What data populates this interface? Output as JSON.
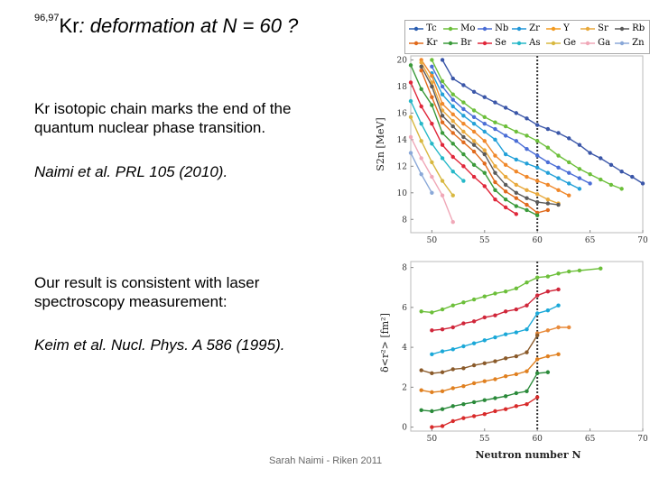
{
  "slide": {
    "title_super": "96,97",
    "title_nucleus": "Kr",
    "title_rest": ":  deformation at N = 60 ?",
    "text1": "Kr isotopic chain marks the end of the quantum nuclear phase transition.",
    "text2": "Naimi et al. PRL 105 (2010).",
    "text3": "Our result is consistent with laser spectroscopy measurement:",
    "text4": "Keim et al. Nucl. Phys. A 586 (1995).",
    "footer": "Sarah Naimi - Riken 2011"
  },
  "chart_data": [
    {
      "type": "line",
      "title": "",
      "xlabel": "",
      "ylabel": "S2n [MeV]",
      "xlim": [
        48,
        70
      ],
      "ylim": [
        7,
        20.3
      ],
      "xticks": [
        50,
        55,
        60,
        65,
        70
      ],
      "yticks": [
        8,
        10,
        12,
        14,
        16,
        18,
        20
      ],
      "vline": 60,
      "legend": [
        {
          "name": "Tc",
          "color": "#2a5db0"
        },
        {
          "name": "Mo",
          "color": "#6cbf3a"
        },
        {
          "name": "Nb",
          "color": "#4a6dd6"
        },
        {
          "name": "Zr",
          "color": "#2196d8"
        },
        {
          "name": "Y",
          "color": "#f39a1f"
        },
        {
          "name": "Sr",
          "color": "#e8a93c"
        },
        {
          "name": "Rb",
          "color": "#5a5a5a"
        },
        {
          "name": "Kr",
          "color": "#e06a1c"
        },
        {
          "name": "Br",
          "color": "#3a9a3a"
        },
        {
          "name": "Se",
          "color": "#e0273a"
        },
        {
          "name": "As",
          "color": "#25b8c8"
        },
        {
          "name": "Ge",
          "color": "#d8b840"
        },
        {
          "name": "Ga",
          "color": "#f0a8b8"
        },
        {
          "name": "Zn",
          "color": "#8aa8d8"
        }
      ],
      "series": [
        {
          "name": "Tc",
          "color": "#3a56a8",
          "x": [
            51,
            52,
            53,
            54,
            55,
            56,
            57,
            58,
            59,
            60,
            61,
            62,
            63,
            64,
            65,
            66,
            67,
            68,
            69,
            70
          ],
          "values": [
            20,
            18.6,
            18.1,
            17.6,
            17.2,
            16.8,
            16.4,
            16.0,
            15.6,
            15.1,
            14.8,
            14.5,
            14.1,
            13.6,
            13.0,
            12.6,
            12.1,
            11.6,
            11.2,
            10.7
          ]
        },
        {
          "name": "Mo",
          "color": "#6cbf3a",
          "x": [
            50,
            51,
            52,
            53,
            54,
            55,
            56,
            57,
            58,
            59,
            60,
            61,
            62,
            63,
            64,
            65,
            66,
            67,
            68
          ],
          "values": [
            20,
            18.4,
            17.4,
            16.8,
            16.2,
            15.7,
            15.3,
            15.0,
            14.6,
            14.3,
            13.9,
            13.4,
            12.8,
            12.3,
            11.8,
            11.4,
            11.0,
            10.6,
            10.3
          ]
        },
        {
          "name": "Nb",
          "color": "#4a6dd6",
          "x": [
            50,
            51,
            52,
            53,
            54,
            55,
            56,
            57,
            58,
            59,
            60,
            61,
            62,
            63,
            64,
            65
          ],
          "values": [
            19.5,
            18.0,
            17.0,
            16.3,
            15.7,
            15.2,
            14.8,
            14.3,
            13.9,
            13.3,
            12.8,
            12.3,
            11.9,
            11.5,
            11.1,
            10.7
          ]
        },
        {
          "name": "Zr",
          "color": "#22a0d8",
          "x": [
            50,
            51,
            52,
            53,
            54,
            55,
            56,
            57,
            58,
            59,
            60,
            61,
            62,
            63,
            64
          ],
          "values": [
            19.0,
            17.4,
            16.5,
            15.8,
            15.2,
            14.6,
            14.0,
            12.9,
            12.5,
            12.2,
            11.9,
            11.5,
            11.1,
            10.7,
            10.3
          ]
        },
        {
          "name": "Y",
          "color": "#f0882a",
          "x": [
            49,
            50,
            51,
            52,
            53,
            54,
            55,
            56,
            57,
            58,
            59,
            60,
            61,
            62,
            63
          ],
          "values": [
            20,
            18.8,
            16.7,
            15.9,
            15.2,
            14.6,
            13.9,
            12.8,
            12.1,
            11.6,
            11.2,
            10.9,
            10.6,
            10.2,
            9.8
          ]
        },
        {
          "name": "Sr",
          "color": "#e8a93c",
          "x": [
            49,
            50,
            51,
            52,
            53,
            54,
            55,
            56,
            57,
            58,
            59,
            60,
            61,
            62
          ],
          "values": [
            19.8,
            18.3,
            16.2,
            15.4,
            14.6,
            13.9,
            13.2,
            12.0,
            11.2,
            10.6,
            10.2,
            9.9,
            9.5,
            9.2
          ]
        },
        {
          "name": "Rb",
          "color": "#5a5a5a",
          "x": [
            49,
            50,
            51,
            52,
            53,
            54,
            55,
            56,
            57,
            58,
            59,
            60,
            61,
            62
          ],
          "values": [
            19.5,
            18.0,
            15.8,
            15.0,
            14.2,
            13.6,
            12.9,
            11.5,
            10.6,
            10.0,
            9.6,
            9.3,
            9.2,
            9.1
          ]
        },
        {
          "name": "Kr",
          "color": "#e06a1c",
          "x": [
            49,
            50,
            51,
            52,
            53,
            54,
            55,
            56,
            57,
            58,
            59,
            60,
            61
          ],
          "values": [
            19.2,
            17.2,
            15.3,
            14.5,
            13.8,
            13.1,
            12.2,
            10.8,
            10.1,
            9.6,
            9.1,
            8.5,
            8.7
          ]
        },
        {
          "name": "Br",
          "color": "#3a9a3a",
          "x": [
            48,
            49,
            50,
            51,
            52,
            53,
            54,
            55,
            56,
            57,
            58,
            59,
            60
          ],
          "values": [
            19.6,
            17.8,
            16.6,
            14.5,
            13.7,
            12.9,
            12.1,
            11.5,
            10.2,
            9.5,
            9.0,
            8.7,
            8.3
          ]
        },
        {
          "name": "Se",
          "color": "#e0273a",
          "x": [
            48,
            49,
            50,
            51,
            52,
            53,
            54,
            55,
            56,
            57,
            58
          ],
          "values": [
            18.3,
            16.5,
            15.2,
            13.6,
            12.7,
            12.0,
            11.2,
            10.5,
            9.5,
            8.9,
            8.4
          ]
        },
        {
          "name": "As",
          "color": "#25b8c8",
          "x": [
            48,
            49,
            50,
            51,
            52,
            53
          ],
          "values": [
            16.9,
            15.2,
            13.7,
            12.6,
            11.6,
            10.9
          ]
        },
        {
          "name": "Ge",
          "color": "#d8b840",
          "x": [
            48,
            49,
            50,
            51,
            52
          ],
          "values": [
            15.7,
            13.9,
            12.3,
            10.9,
            9.8
          ]
        },
        {
          "name": "Ga",
          "color": "#f0a8b8",
          "x": [
            48,
            49,
            50,
            51,
            52
          ],
          "values": [
            14.2,
            12.6,
            11.2,
            9.8,
            7.8
          ]
        },
        {
          "name": "Zn",
          "color": "#8aa8d8",
          "x": [
            48,
            49,
            50
          ],
          "values": [
            13.0,
            11.4,
            10.0
          ]
        }
      ]
    },
    {
      "type": "line",
      "title": "",
      "xlabel": "Neutron number N",
      "ylabel": "δ<r²> [fm²]",
      "xlim": [
        48,
        70
      ],
      "ylim": [
        -0.2,
        8.3
      ],
      "xticks": [
        50,
        55,
        60,
        65,
        70
      ],
      "yticks": [
        0,
        2,
        4,
        6,
        8
      ],
      "vline": 60,
      "series": [
        {
          "name": "Mo",
          "color": "#6cbf3a",
          "x": [
            49,
            50,
            51,
            52,
            53,
            54,
            55,
            56,
            57,
            58,
            59,
            60,
            61,
            62,
            63,
            64,
            66
          ],
          "values": [
            5.8,
            5.75,
            5.9,
            6.1,
            6.25,
            6.4,
            6.55,
            6.7,
            6.8,
            6.95,
            7.25,
            7.5,
            7.55,
            7.7,
            7.8,
            7.85,
            7.95
          ]
        },
        {
          "name": "Nb",
          "color": "#d0263a",
          "x": [
            50,
            51,
            52,
            53,
            54,
            55,
            56,
            57,
            58,
            59,
            60,
            61,
            62
          ],
          "values": [
            4.85,
            4.9,
            5.0,
            5.2,
            5.3,
            5.5,
            5.6,
            5.8,
            5.9,
            6.1,
            6.6,
            6.8,
            6.9
          ]
        },
        {
          "name": "Zr",
          "color": "#1aa8d8",
          "x": [
            50,
            51,
            52,
            53,
            54,
            55,
            56,
            57,
            58,
            59,
            60,
            61,
            62
          ],
          "values": [
            3.65,
            3.8,
            3.9,
            4.05,
            4.2,
            4.35,
            4.5,
            4.65,
            4.75,
            4.9,
            5.7,
            5.85,
            6.1
          ]
        },
        {
          "name": "Y",
          "color": "#e88a3a",
          "x": [
            60,
            61,
            62,
            63
          ],
          "values": [
            4.7,
            4.85,
            5.0,
            5.0
          ]
        },
        {
          "name": "Sr",
          "color": "#8a5a2a",
          "x": [
            49,
            50,
            51,
            52,
            53,
            54,
            55,
            56,
            57,
            58,
            59,
            60
          ],
          "values": [
            2.85,
            2.7,
            2.75,
            2.9,
            2.95,
            3.1,
            3.2,
            3.3,
            3.45,
            3.55,
            3.75,
            4.6
          ]
        },
        {
          "name": "Rb",
          "color": "#e08020",
          "x": [
            49,
            50,
            51,
            52,
            53,
            54,
            55,
            56,
            57,
            58,
            59,
            60,
            61,
            62
          ],
          "values": [
            1.85,
            1.75,
            1.8,
            1.95,
            2.05,
            2.2,
            2.3,
            2.4,
            2.55,
            2.65,
            2.8,
            3.4,
            3.55,
            3.65
          ]
        },
        {
          "name": "Kr",
          "color": "#2a8a3a",
          "x": [
            49,
            50,
            51,
            52,
            53,
            54,
            55,
            56,
            57,
            58,
            59,
            60,
            61
          ],
          "values": [
            0.85,
            0.8,
            0.9,
            1.05,
            1.15,
            1.25,
            1.35,
            1.45,
            1.55,
            1.7,
            1.8,
            2.7,
            2.75
          ]
        },
        {
          "name": "Br",
          "color": "#d82a2a",
          "x": [
            50,
            51,
            52,
            53,
            54,
            55,
            56,
            57,
            58,
            59,
            60
          ],
          "values": [
            0.0,
            0.05,
            0.3,
            0.45,
            0.55,
            0.65,
            0.8,
            0.9,
            1.05,
            1.15,
            1.5
          ]
        }
      ]
    }
  ]
}
